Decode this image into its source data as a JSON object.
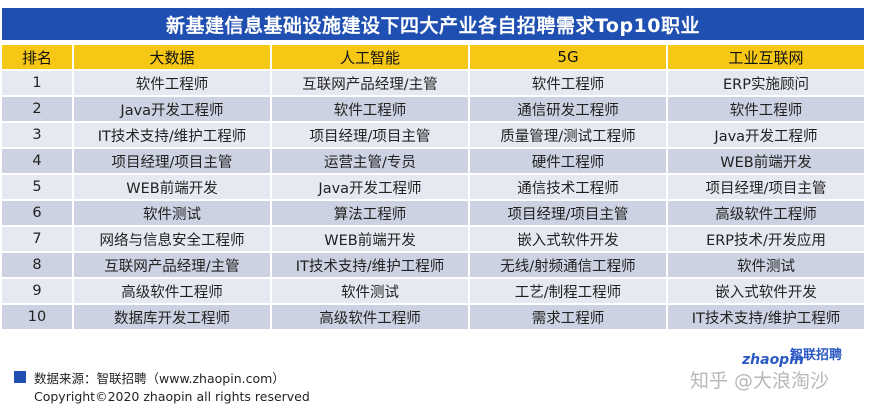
{
  "title": "新基建信息基础设施建设下四大产业各自招聘需求Top10职业",
  "table": {
    "headers": [
      "排名",
      "大数据",
      "人工智能",
      "5G",
      "工业互联网"
    ],
    "rows": [
      [
        "1",
        "软件工程师",
        "互联网产品经理/主管",
        "软件工程师",
        "ERP实施顾问"
      ],
      [
        "2",
        "Java开发工程师",
        "软件工程师",
        "通信研发工程师",
        "软件工程师"
      ],
      [
        "3",
        "IT技术支持/维护工程师",
        "项目经理/项目主管",
        "质量管理/测试工程师",
        "Java开发工程师"
      ],
      [
        "4",
        "项目经理/项目主管",
        "运营主管/专员",
        "硬件工程师",
        "WEB前端开发"
      ],
      [
        "5",
        "WEB前端开发",
        "Java开发工程师",
        "通信技术工程师",
        "项目经理/项目主管"
      ],
      [
        "6",
        "软件测试",
        "算法工程师",
        "项目经理/项目主管",
        "高级软件工程师"
      ],
      [
        "7",
        "网络与信息安全工程师",
        "WEB前端开发",
        "嵌入式软件开发",
        "ERP技术/开发应用"
      ],
      [
        "8",
        "互联网产品经理/主管",
        "IT技术支持/维护工程师",
        "无线/射频通信工程师",
        "软件测试"
      ],
      [
        "9",
        "高级软件工程师",
        "软件测试",
        "工艺/制程工程师",
        "嵌入式软件开发"
      ],
      [
        "10",
        "数据库开发工程师",
        "高级软件工程师",
        "需求工程师",
        "IT技术支持/维护工程师"
      ]
    ]
  },
  "footer": {
    "source": "数据来源：智联招聘（www.zhaopin.com）",
    "copyright": "Copyright©2020 zhaopin all rights reserved"
  },
  "logo": {
    "latin": "zhaopin",
    "cn": "智联招聘"
  },
  "watermark": "知乎 @大浪淘沙",
  "colors": {
    "title_bg": "#1f4fb0",
    "header_bg": "#f6c715",
    "row_light": "#e6e9f2",
    "row_dark": "#ccd2e2"
  }
}
